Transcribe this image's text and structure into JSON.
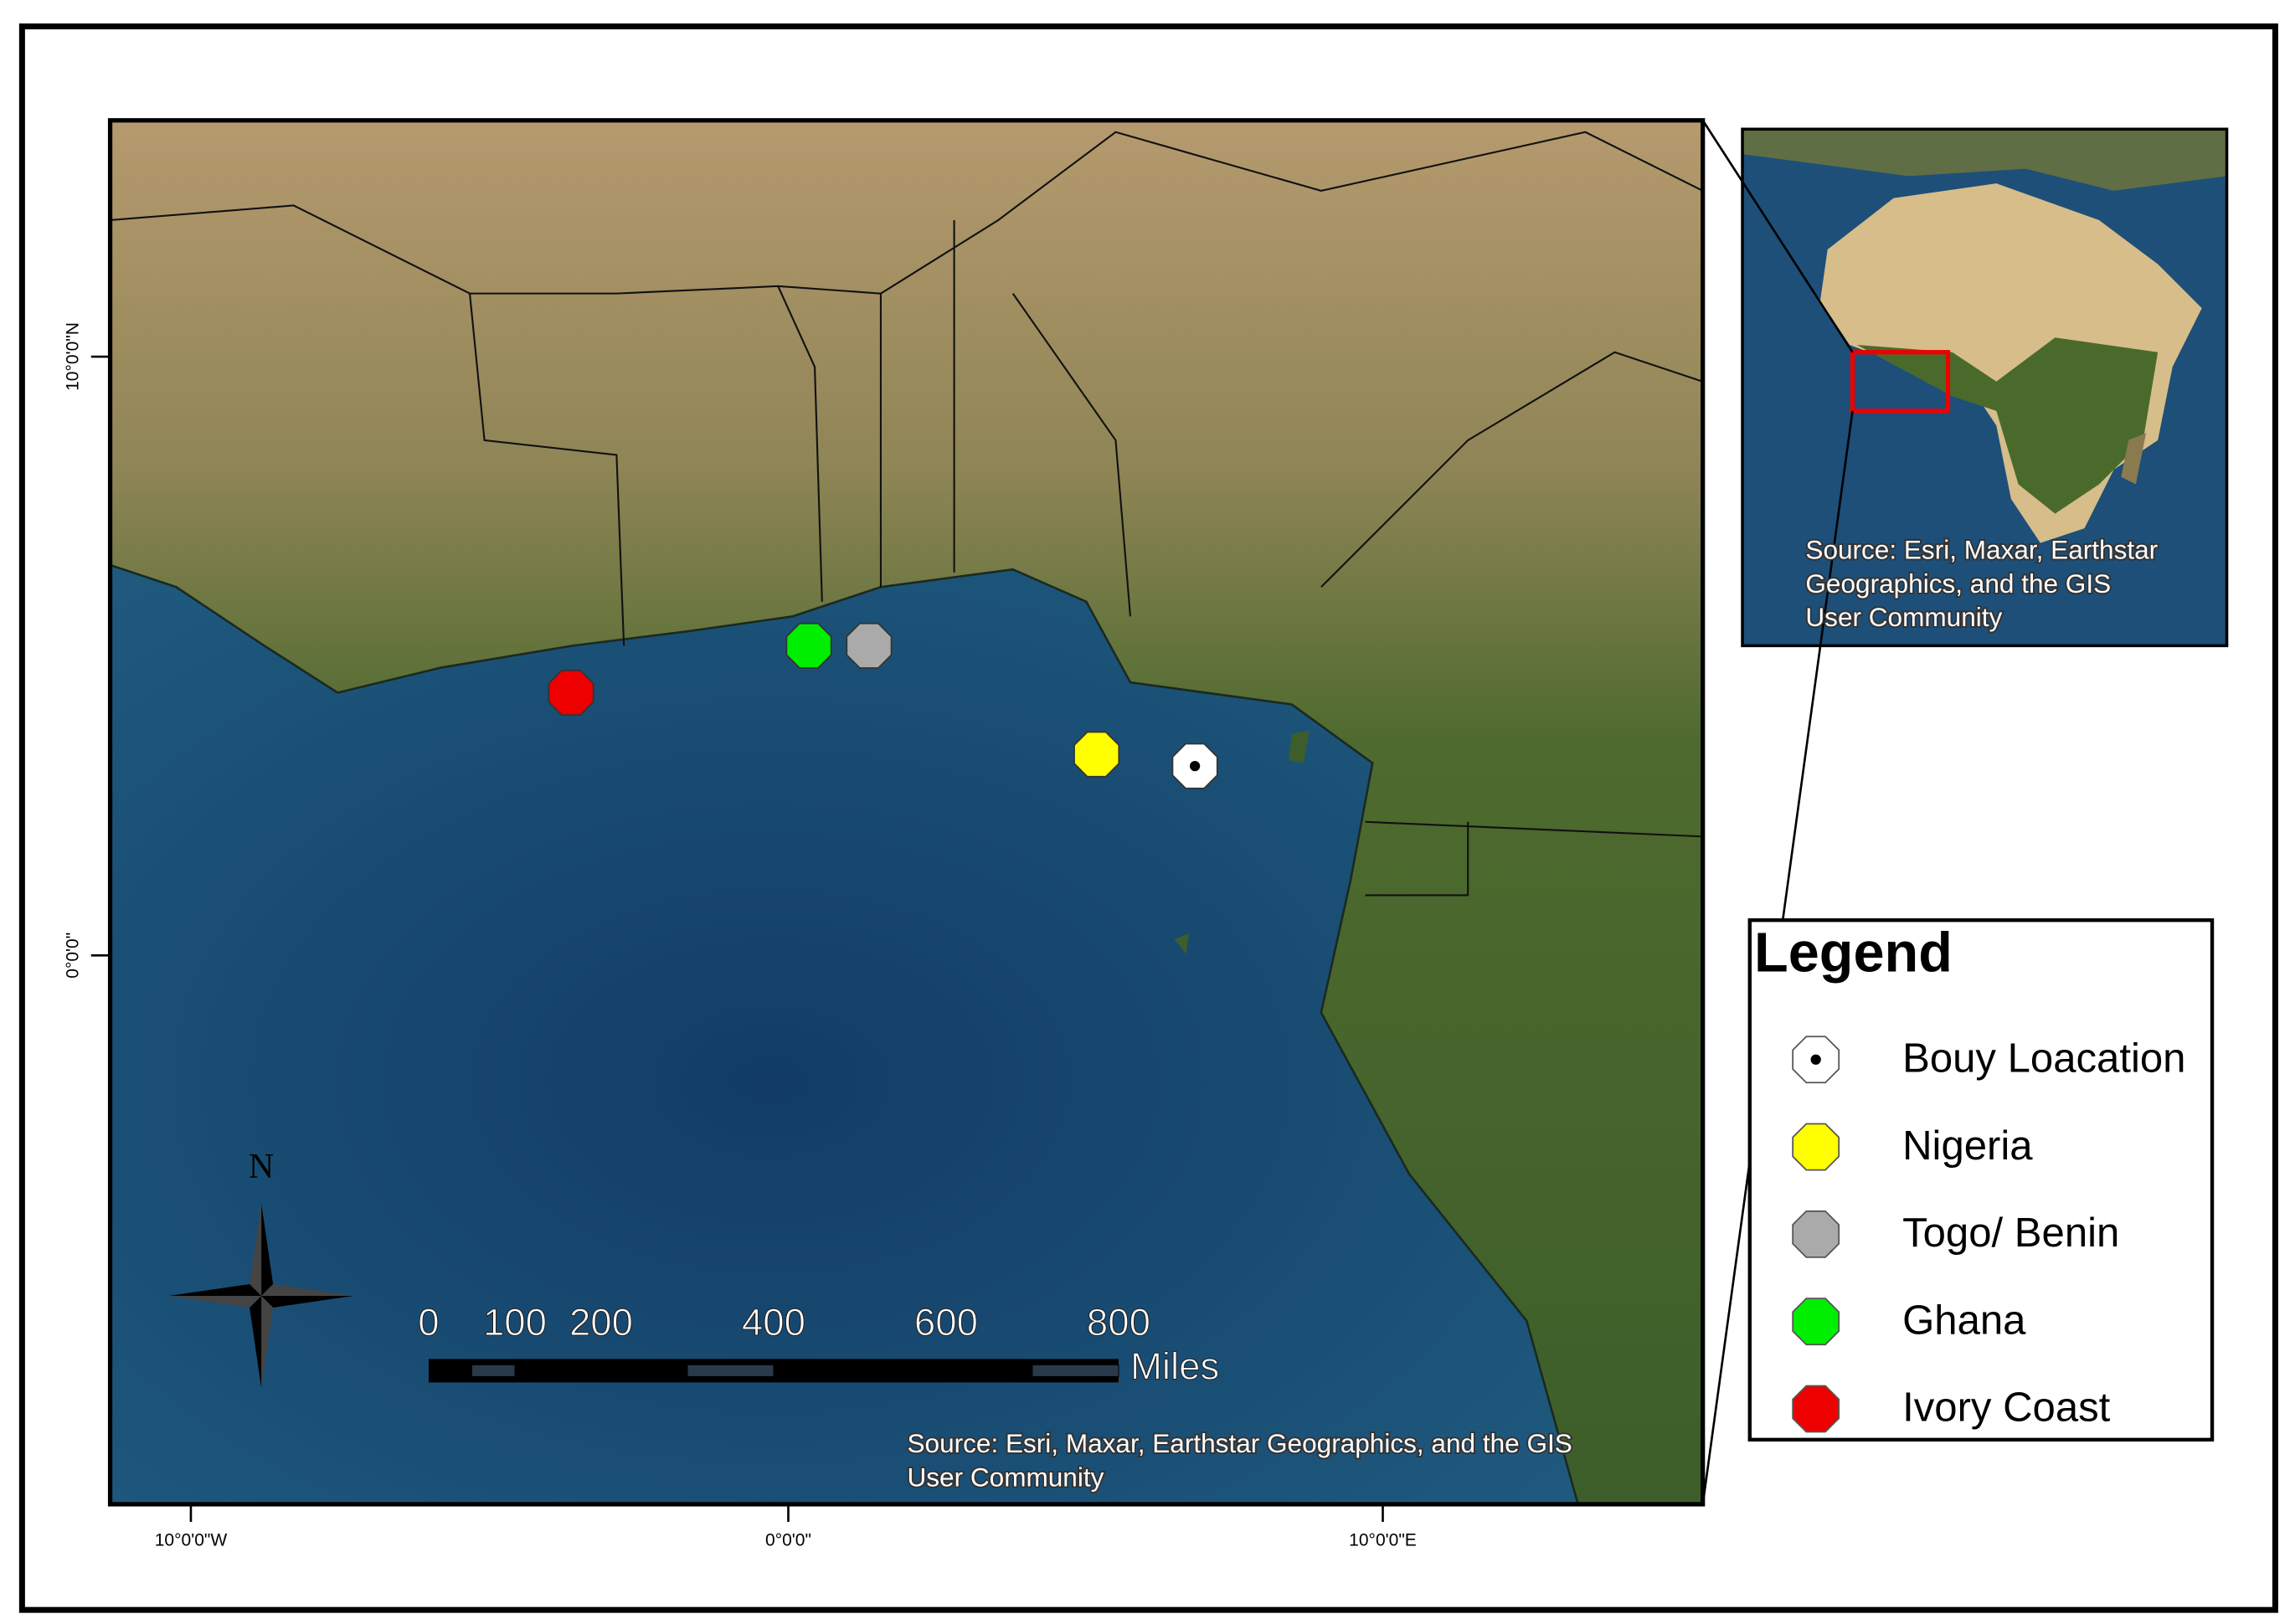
{
  "map": {
    "lat_labels": [
      "10°0'0\"N",
      "0°0'0\""
    ],
    "lon_labels": [
      "10°0'0\"W",
      "0°0'0\"",
      "10°0'0\"E"
    ],
    "north": "N",
    "scale_bar": {
      "ticks": [
        0,
        100,
        200,
        400,
        600,
        800
      ],
      "unit": "Miles"
    },
    "source": [
      "Source: Esri, Maxar, Earthstar Geographics, and the GIS",
      "User Community"
    ]
  },
  "inset": {
    "source": [
      "Source: Esri, Maxar, Earthstar",
      "Geographics, and the GIS",
      "User Community"
    ]
  },
  "legend": {
    "title": "Legend",
    "items": [
      {
        "label": "Bouy Loacation",
        "color": "#ffffff"
      },
      {
        "label": "Nigeria",
        "color": "#ffff00"
      },
      {
        "label": "Togo/ Benin",
        "color": "#aaaaaa"
      },
      {
        "label": "Ghana",
        "color": "#00ee00"
      },
      {
        "label": "Ivory Coast",
        "color": "#ee0000"
      }
    ]
  }
}
